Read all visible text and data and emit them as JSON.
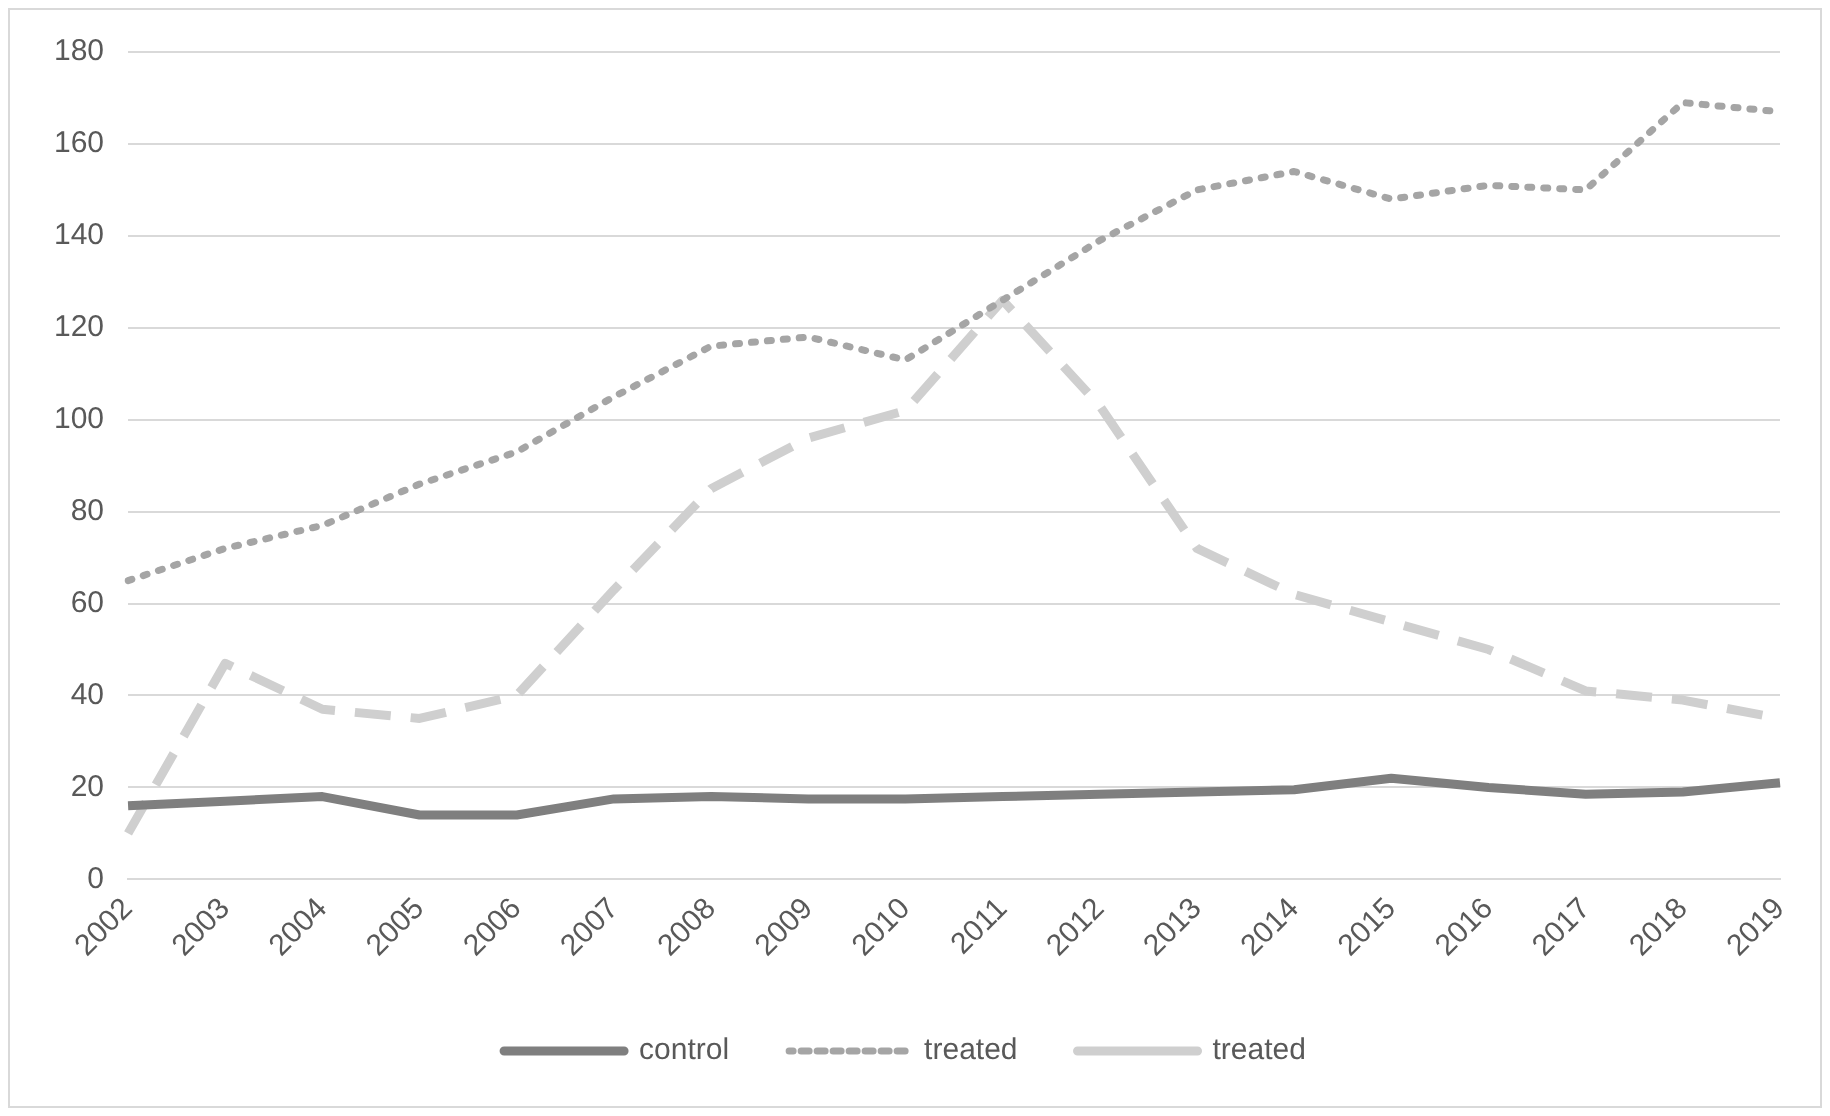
{
  "chart_data": {
    "type": "line",
    "categories": [
      "2002",
      "2003",
      "2004",
      "2005",
      "2006",
      "2007",
      "2008",
      "2009",
      "2010",
      "2011",
      "2012",
      "2013",
      "2014",
      "2015",
      "2016",
      "2017",
      "2018",
      "2019"
    ],
    "series": [
      {
        "name": "control",
        "color": "#7f7f7f",
        "line_style": "solid",
        "values": [
          16,
          17,
          18,
          14,
          14,
          17.5,
          18,
          17.5,
          17.5,
          18,
          18.5,
          19,
          19.5,
          22,
          20,
          18.5,
          19,
          21
        ]
      },
      {
        "name": "treated",
        "color": "#a5a5a5",
        "line_style": "dotted",
        "values": [
          65,
          72,
          77,
          86,
          93,
          105,
          116,
          118,
          113,
          126,
          139,
          150,
          154,
          148,
          151,
          150,
          169,
          167
        ]
      },
      {
        "name": "treated",
        "color": "#cfcfcf",
        "line_style": "dashed",
        "values": [
          10,
          47,
          37,
          35,
          40,
          63,
          85,
          96,
          102,
          126,
          103,
          72,
          62,
          56,
          50,
          41,
          39,
          35
        ]
      }
    ],
    "ylim": [
      0,
      180
    ],
    "yticks": [
      0,
      20,
      40,
      60,
      80,
      100,
      120,
      140,
      160,
      180
    ],
    "grid": "y",
    "legend": "bottom",
    "marker": "none"
  }
}
